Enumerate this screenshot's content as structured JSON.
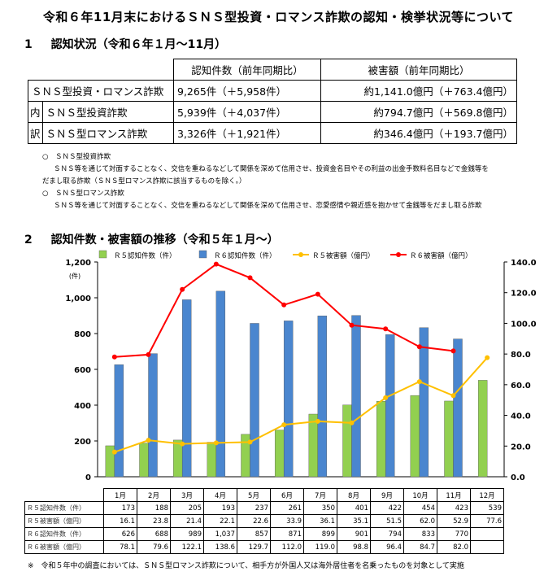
{
  "title": "令和６年11月末におけるＳＮＳ型投資・ロマンス詐欺の認知・検挙状況等について",
  "section1": {
    "number": "1",
    "heading": "認知状況（令和６年１月～11月）"
  },
  "summary_table": {
    "headers": [
      "認知件数（前年同期比）",
      "被害額（前年同期比）"
    ],
    "total": {
      "label": "ＳＮＳ型投資・ロマンス詐欺",
      "count": "9,265件（＋5,958件）",
      "amount": "約1,141.0億円（＋763.4億円）"
    },
    "breakdown_label_1": "内",
    "breakdown_label_2": "訳",
    "rows": [
      {
        "label": "ＳＮＳ型投資詐欺",
        "count": "5,939件（＋4,037件）",
        "amount": "約794.7億円（＋569.8億円）"
      },
      {
        "label": "ＳＮＳ型ロマンス詐欺",
        "count": "3,326件（＋1,921件）",
        "amount": "約346.4億円（＋193.7億円）"
      }
    ]
  },
  "notes": [
    {
      "bullet": "○",
      "heading": "ＳＮＳ型投資詐欺",
      "lines": [
        "ＳＮＳ等を通じて対面することなく、交信を重ねるなどして関係を深めて信用させ、投資金名目やその利益の出金手数料名目などで金銭等を",
        "だまし取る詐欺（ＳＮＳ型ロマンス詐欺に該当するものを除く。）"
      ]
    },
    {
      "bullet": "○",
      "heading": "ＳＮＳ型ロマンス詐欺",
      "lines": [
        "ＳＮＳ等を通じて対面することなく、交信を重ねるなどして関係を深めて信用させ、恋愛感情や親近感を抱かせて金銭等をだまし取る詐欺"
      ]
    }
  ],
  "section2": {
    "number": "2",
    "heading": "認知件数・被害額の推移（令和５年１月～）"
  },
  "colors": {
    "r5_count": "#92d050",
    "r6_count": "#4a86cf",
    "r5_amount": "#ffc000",
    "r6_amount": "#ff0000"
  },
  "chart_data": {
    "type": "bar",
    "categories": [
      "1月",
      "2月",
      "3月",
      "4月",
      "5月",
      "6月",
      "7月",
      "8月",
      "9月",
      "10月",
      "11月",
      "12月"
    ],
    "y_left": {
      "unit": "(件)",
      "range": [
        0,
        1200
      ],
      "ticks": [
        "0",
        "200",
        "400",
        "600",
        "800",
        "1,000",
        "1,200"
      ]
    },
    "y_right": {
      "range": [
        0,
        140
      ],
      "ticks": [
        "0.0",
        "20.0",
        "40.0",
        "60.0",
        "80.0",
        "100.0",
        "120.0",
        "140.0"
      ]
    },
    "series": [
      {
        "name": "Ｒ５認知件数（件）",
        "kind": "bar",
        "axis": "left",
        "values": [
          173,
          188,
          205,
          193,
          237,
          261,
          350,
          401,
          422,
          454,
          423,
          539
        ]
      },
      {
        "name": "Ｒ６認知件数（件）",
        "kind": "bar",
        "axis": "left",
        "values": [
          626,
          688,
          989,
          1037,
          857,
          871,
          899,
          901,
          794,
          833,
          770,
          null
        ]
      },
      {
        "name": "Ｒ５被害額（億円）",
        "kind": "line",
        "axis": "right",
        "values": [
          16.1,
          23.8,
          21.4,
          22.1,
          22.6,
          33.9,
          36.1,
          35.1,
          51.5,
          62.0,
          52.9,
          77.6
        ]
      },
      {
        "name": "Ｒ６被害額（億円）",
        "kind": "line",
        "axis": "right",
        "values": [
          78.1,
          79.6,
          122.1,
          138.6,
          129.7,
          112.0,
          119.0,
          98.8,
          96.4,
          84.7,
          82.0,
          null
        ]
      }
    ],
    "legend": "top"
  },
  "data_table": {
    "rows": [
      {
        "label": "Ｒ５認知件数（件）",
        "cells": [
          "173",
          "188",
          "205",
          "193",
          "237",
          "261",
          "350",
          "401",
          "422",
          "454",
          "423",
          "539"
        ]
      },
      {
        "label": "Ｒ５被害額（億円）",
        "cells": [
          "16.1",
          "23.8",
          "21.4",
          "22.1",
          "22.6",
          "33.9",
          "36.1",
          "35.1",
          "51.5",
          "62.0",
          "52.9",
          "77.6"
        ]
      },
      {
        "label": "Ｒ６認知件数（件）",
        "cells": [
          "626",
          "688",
          "989",
          "1,037",
          "857",
          "871",
          "899",
          "901",
          "794",
          "833",
          "770",
          ""
        ]
      },
      {
        "label": "Ｒ６被害額（億円）",
        "cells": [
          "78.1",
          "79.6",
          "122.1",
          "138.6",
          "129.7",
          "112.0",
          "119.0",
          "98.8",
          "96.4",
          "84.7",
          "82.0",
          ""
        ]
      }
    ]
  },
  "footnote": "※　令和５年中の調査においては、ＳＮＳ型ロマンス詐欺について、相手方が外国人又は海外居住者を名乗ったものを対象として実施"
}
